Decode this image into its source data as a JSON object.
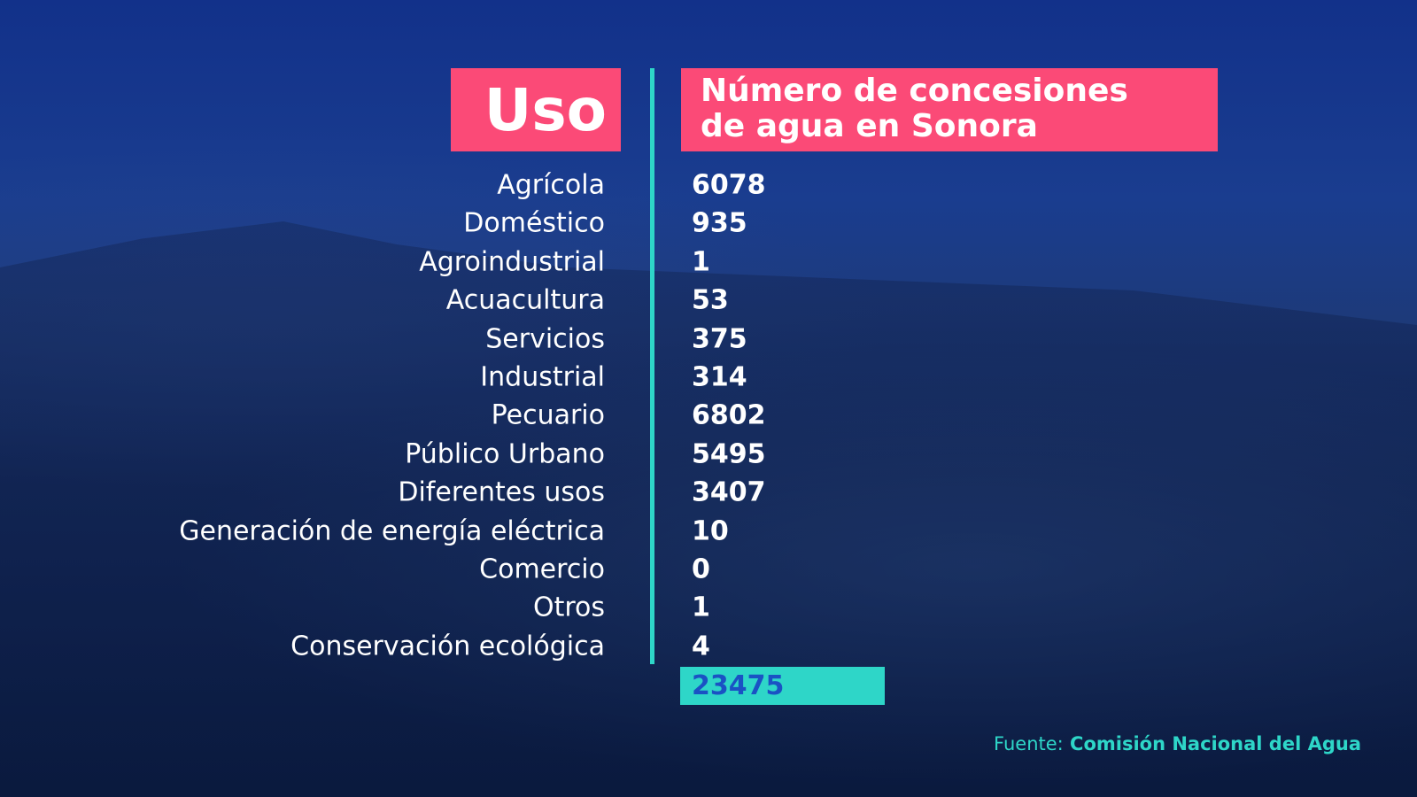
{
  "header": {
    "uso": "Uso",
    "concesiones": [
      "Número de concesiones",
      "de agua en Sonora"
    ]
  },
  "table": {
    "rows": [
      [
        "Agrícola",
        6078
      ],
      [
        "Doméstico",
        935
      ],
      [
        "Agroindustrial",
        1
      ],
      [
        "Acuacultura",
        53
      ],
      [
        "Servicios",
        375
      ],
      [
        "Industrial",
        314
      ],
      [
        "Pecuario",
        6802
      ],
      [
        "Público Urbano",
        5495
      ],
      [
        "Diferentes usos",
        3407
      ],
      [
        "Generación de energía eléctrica",
        10
      ],
      [
        "Comercio",
        0
      ],
      [
        "Otros",
        1
      ],
      [
        "Conservación ecológica",
        4
      ]
    ],
    "total": 23475
  },
  "source": {
    "label": "Fuente:",
    "name": "Comisión Nacional del Agua"
  }
}
